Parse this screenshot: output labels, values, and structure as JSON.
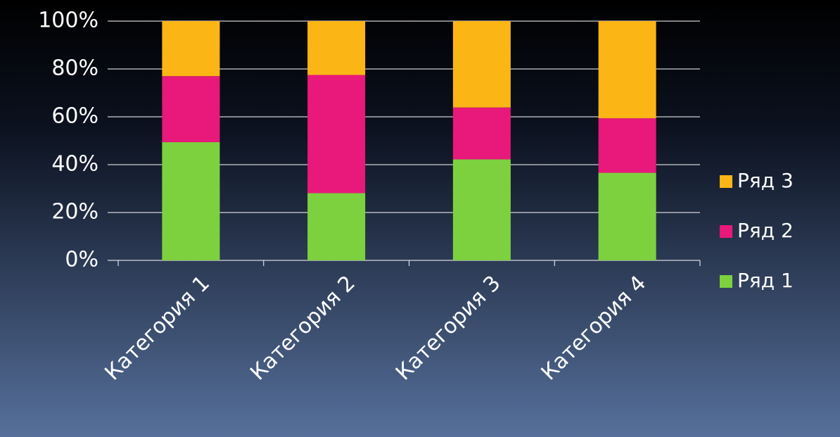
{
  "chart_data": {
    "type": "stacked_bar_100",
    "categories": [
      "Категория 1",
      "Категория 2",
      "Категория 3",
      "Категория 4"
    ],
    "series": [
      {
        "name": "Ряд 1",
        "color": "#7dd13f",
        "values": [
          49.4,
          28.1,
          42.2,
          36.6
        ]
      },
      {
        "name": "Ряд 2",
        "color": "#e8197a",
        "values": [
          27.6,
          49.4,
          21.7,
          22.8
        ]
      },
      {
        "name": "Ряд 3",
        "color": "#fbb515",
        "values": [
          23.0,
          22.5,
          36.1,
          40.6
        ]
      }
    ],
    "ylim": [
      0,
      100
    ],
    "yticks": [
      {
        "value": 0,
        "label": "0%"
      },
      {
        "value": 20,
        "label": "20%"
      },
      {
        "value": 40,
        "label": "40%"
      },
      {
        "value": 60,
        "label": "60%"
      },
      {
        "value": 80,
        "label": "80%"
      },
      {
        "value": 100,
        "label": "100%"
      }
    ],
    "grid": true,
    "legend": "right"
  }
}
